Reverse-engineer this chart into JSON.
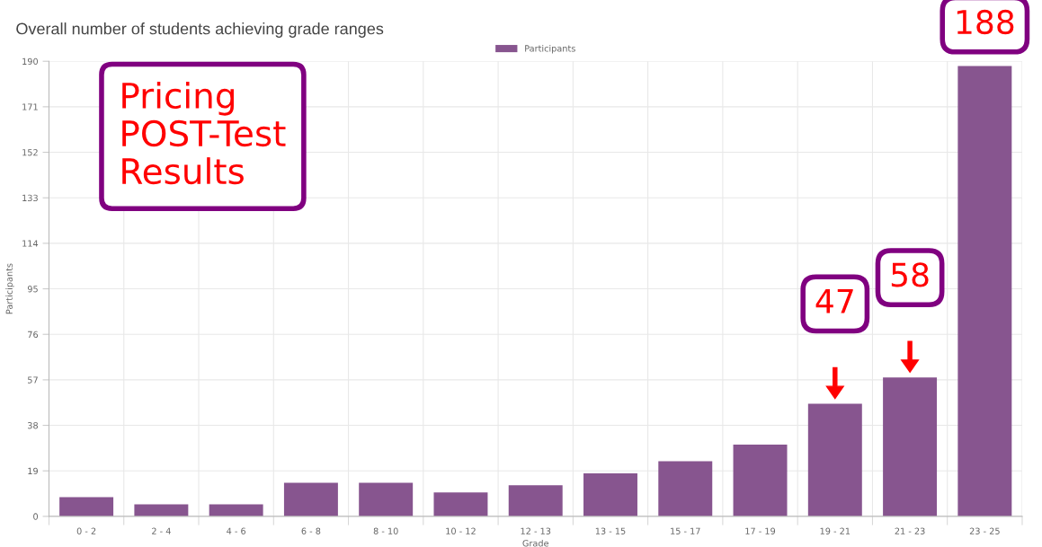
{
  "chart_data": {
    "type": "bar",
    "title": "Overall number of students achieving grade ranges",
    "xlabel": "Grade",
    "ylabel": "Participants",
    "categories": [
      "0 - 2",
      "2 - 4",
      "4 - 6",
      "6 - 8",
      "8 - 10",
      "10 - 12",
      "12 - 13",
      "13 - 15",
      "15 - 17",
      "17 - 19",
      "19 - 21",
      "21 - 23",
      "23 - 25"
    ],
    "series": [
      {
        "name": "Participants",
        "color": "#87558f",
        "values": [
          8,
          5,
          5,
          14,
          14,
          10,
          13,
          18,
          23,
          30,
          47,
          58,
          188
        ]
      }
    ],
    "ylim": [
      0,
      190
    ],
    "yticks": [
      0,
      19,
      38,
      57,
      76,
      95,
      114,
      133,
      152,
      171,
      190
    ],
    "grid": true,
    "legend": "top",
    "annotations": [
      "Pricing\nPOST-Test\nResults",
      {
        "text": "47",
        "x": "19 - 21",
        "y": 47
      },
      {
        "text": "58",
        "x": "21 - 23",
        "y": 58
      },
      {
        "text": "188",
        "x": "23 - 25",
        "y": 188
      }
    ]
  }
}
